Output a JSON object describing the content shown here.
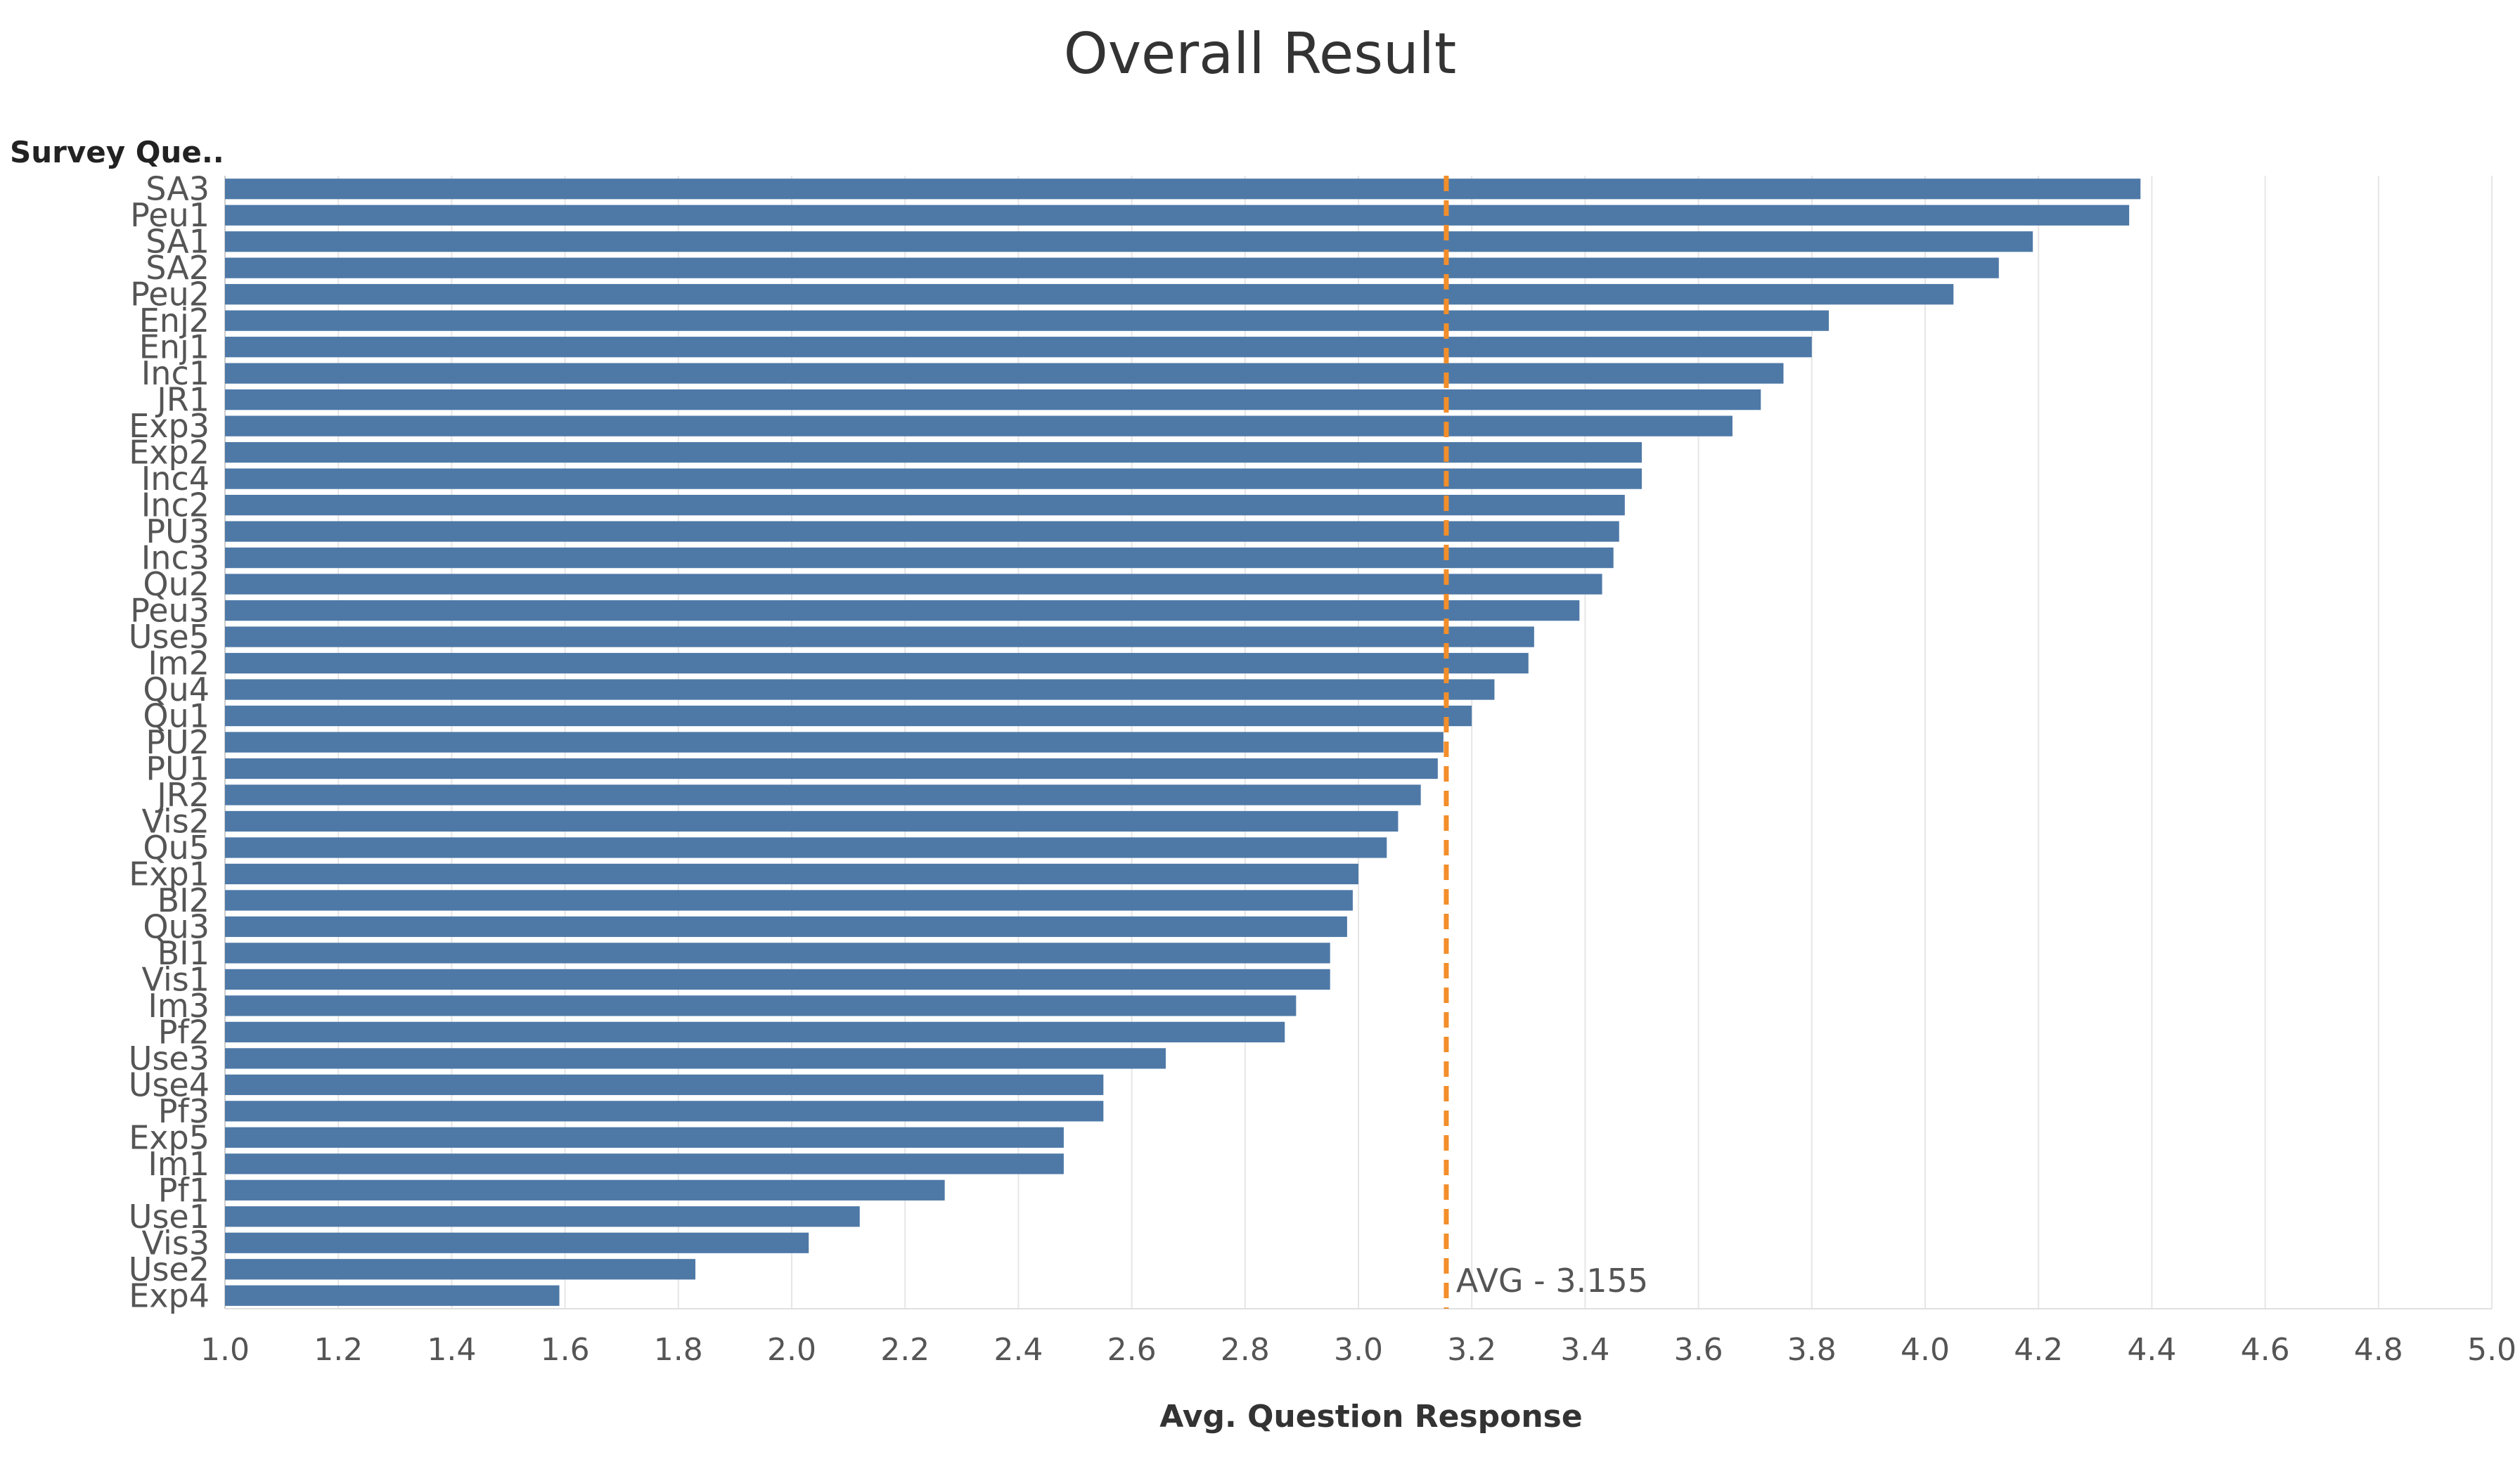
{
  "chart_data": {
    "type": "bar",
    "orientation": "horizontal",
    "title": "Overall Result",
    "row_header": "Survey Que..",
    "xlabel": "Avg. Question Response",
    "xlim": [
      1.0,
      5.0
    ],
    "xticks": [
      "1.0",
      "1.2",
      "1.4",
      "1.6",
      "1.8",
      "2.0",
      "2.2",
      "2.4",
      "2.6",
      "2.8",
      "3.0",
      "3.2",
      "3.4",
      "3.6",
      "3.8",
      "4.0",
      "4.2",
      "4.4",
      "4.6",
      "4.8",
      "5.0"
    ],
    "grid": true,
    "bar_color": "#4e79a7",
    "reference_line": {
      "value": 3.155,
      "label": "AVG - 3.155",
      "color": "#f28e2b",
      "style": "dashed"
    },
    "categories": [
      "SA3",
      "Peu1",
      "SA1",
      "SA2",
      "Peu2",
      "Enj2",
      "Enj1",
      "Inc1",
      "JR1",
      "Exp3",
      "Exp2",
      "Inc4",
      "Inc2",
      "PU3",
      "Inc3",
      "Qu2",
      "Peu3",
      "Use5",
      "Im2",
      "Qu4",
      "Qu1",
      "PU2",
      "PU1",
      "JR2",
      "Vis2",
      "Qu5",
      "Exp1",
      "BI2",
      "Qu3",
      "BI1",
      "Vis1",
      "Im3",
      "Pf2",
      "Use3",
      "Use4",
      "Pf3",
      "Exp5",
      "Im1",
      "Pf1",
      "Use1",
      "Vis3",
      "Use2",
      "Exp4"
    ],
    "values": [
      4.38,
      4.36,
      4.19,
      4.13,
      4.05,
      3.83,
      3.8,
      3.75,
      3.71,
      3.66,
      3.5,
      3.5,
      3.47,
      3.46,
      3.45,
      3.43,
      3.39,
      3.31,
      3.3,
      3.24,
      3.2,
      3.15,
      3.14,
      3.11,
      3.07,
      3.05,
      3.0,
      2.99,
      2.98,
      2.95,
      2.95,
      2.89,
      2.87,
      2.66,
      2.55,
      2.55,
      2.48,
      2.48,
      2.27,
      2.12,
      2.03,
      1.83,
      1.59
    ]
  }
}
